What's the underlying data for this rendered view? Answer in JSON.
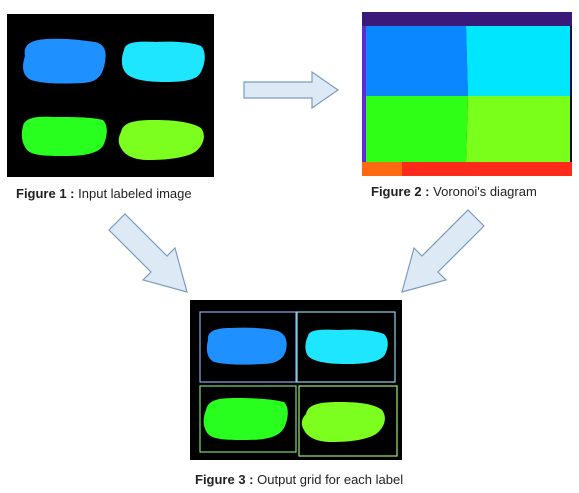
{
  "figures": [
    {
      "label": "Figure 1 :",
      "text": "Input labeled image"
    },
    {
      "label": "Figure 2 :",
      "text": "Voronoi's diagram"
    },
    {
      "label": "Figure 3 :",
      "text": "Output grid for each label"
    }
  ],
  "colors": {
    "blob_blue": "#1e90ff",
    "blob_cyan": "#1ee6ff",
    "blob_green": "#28ff1e",
    "blob_lime": "#7cff1e",
    "voronoi_blue": "#0a86ff",
    "voronoi_cyan": "#00e6ff",
    "voronoi_green": "#2dff17",
    "voronoi_lime": "#79ff19",
    "arrow_fill": "#dde9f5",
    "arrow_stroke": "#7a9cc0"
  }
}
